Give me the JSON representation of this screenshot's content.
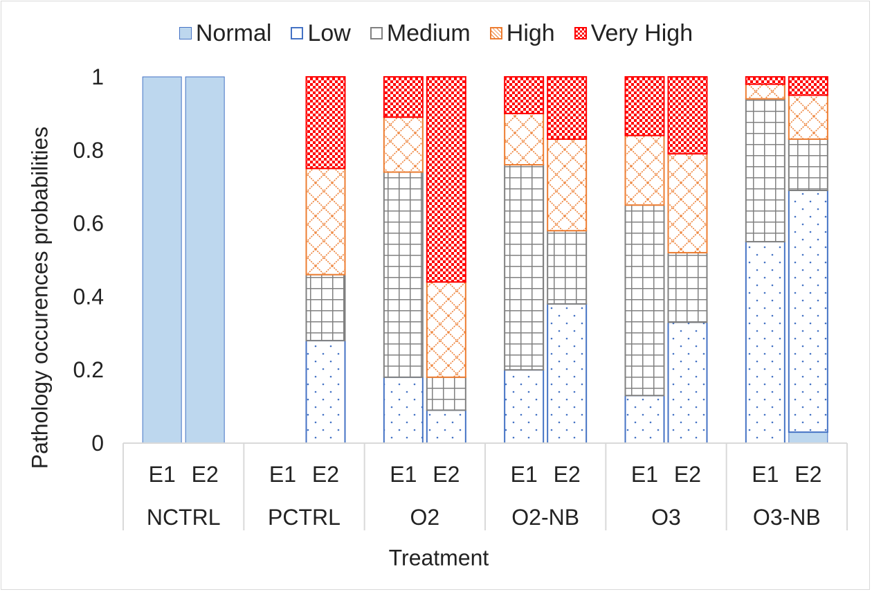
{
  "chart_data": {
    "type": "bar",
    "stacked": true,
    "title": "",
    "xlabel": "Treatment",
    "ylabel": "Pathology occurences probabilities",
    "ylim": [
      0,
      1
    ],
    "yticks": [
      "0",
      "0.2",
      "0.4",
      "0.6",
      "0.8",
      "1"
    ],
    "legend_position": "top",
    "groups": [
      {
        "name": "NCTRL",
        "bars": [
          "E1",
          "E2"
        ]
      },
      {
        "name": "PCTRL",
        "bars": [
          "E1",
          "E2"
        ]
      },
      {
        "name": "O2",
        "bars": [
          "E1",
          "E2"
        ]
      },
      {
        "name": "O2-NB",
        "bars": [
          "E1",
          "E2"
        ]
      },
      {
        "name": "O3",
        "bars": [
          "E1",
          "E2"
        ]
      },
      {
        "name": "O3-NB",
        "bars": [
          "E1",
          "E2"
        ]
      }
    ],
    "categories": [
      "NCTRL E1",
      "NCTRL E2",
      "PCTRL E1",
      "PCTRL E2",
      "O2 E1",
      "O2 E2",
      "O2-NB E1",
      "O2-NB E2",
      "O3 E1",
      "O3 E2",
      "O3-NB E1",
      "O3-NB E2"
    ],
    "series": [
      {
        "name": "Normal",
        "color": "#bdd7ee",
        "pattern": "solid",
        "values": [
          1,
          1,
          0,
          0,
          0,
          0,
          0,
          0,
          0,
          0,
          0,
          0.03
        ]
      },
      {
        "name": "Low",
        "color": "#4472c4",
        "pattern": "dots",
        "values": [
          0,
          0,
          0,
          0.28,
          0.18,
          0.09,
          0.2,
          0.38,
          0.13,
          0.33,
          0.55,
          0.66
        ]
      },
      {
        "name": "Medium",
        "color": "#808080",
        "pattern": "grid",
        "values": [
          0,
          0,
          0,
          0.18,
          0.56,
          0.09,
          0.56,
          0.2,
          0.52,
          0.19,
          0.39,
          0.14
        ]
      },
      {
        "name": "High",
        "color": "#ed7d31",
        "pattern": "crosshatch",
        "values": [
          0,
          0,
          0,
          0.29,
          0.15,
          0.26,
          0.14,
          0.25,
          0.19,
          0.27,
          0.04,
          0.12
        ]
      },
      {
        "name": "Very High",
        "color": "#ff0000",
        "pattern": "checker",
        "values": [
          0,
          0,
          0,
          0.25,
          0.11,
          0.56,
          0.1,
          0.17,
          0.16,
          0.21,
          0.02,
          0.05
        ]
      }
    ]
  }
}
